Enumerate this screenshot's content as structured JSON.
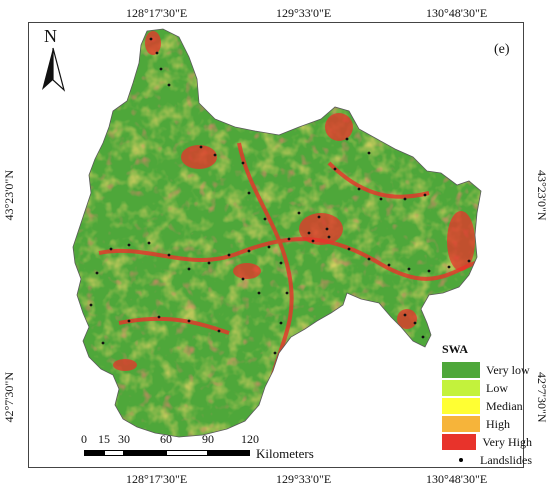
{
  "panel_label": "(e)",
  "north_label": "N",
  "graticule": {
    "top": [
      "128°17'30\"E",
      "129°33'0\"E",
      "130°48'30\"E"
    ],
    "bottom": [
      "128°17'30\"E",
      "129°33'0\"E",
      "130°48'30\"E"
    ],
    "left": [
      "43°23'0\"N",
      "42°7'30\"N"
    ],
    "right": [
      "43°23'0\"N",
      "42°7'30\"N"
    ]
  },
  "legend": {
    "title": "SWA",
    "items": [
      {
        "label": "Very low",
        "color": "#4ea73a"
      },
      {
        "label": "Low",
        "color": "#c3f23c"
      },
      {
        "label": "Median",
        "color": "#ffff33"
      },
      {
        "label": "High",
        "color": "#f6b43a"
      },
      {
        "label": "Very High",
        "color": "#e8332b"
      }
    ],
    "landslides_label": "Landslides"
  },
  "scale": {
    "ticks": [
      "0",
      "15",
      "30",
      "60",
      "90",
      "120"
    ],
    "units": "Kilometers"
  }
}
